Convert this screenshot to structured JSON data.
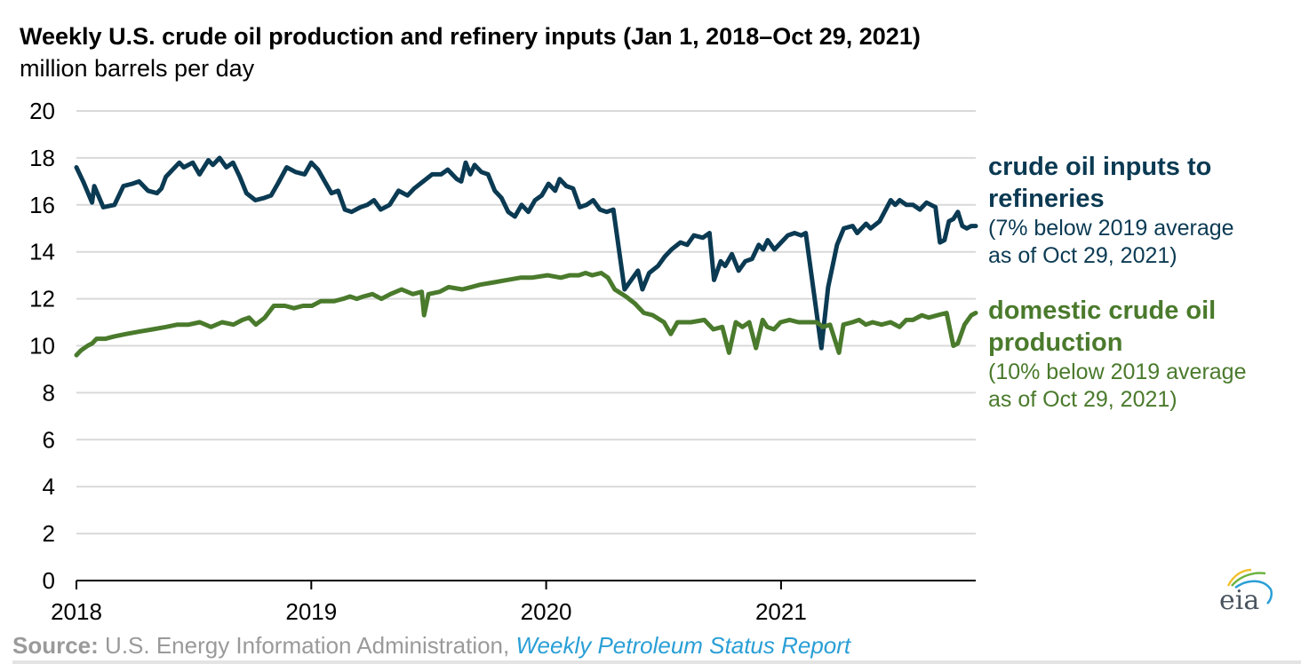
{
  "title": "Weekly U.S. crude oil production and refinery inputs (Jan 1, 2018–Oct 29, 2021)",
  "subtitle": "million barrels per day",
  "labels": {
    "refinery_head_1": "crude oil inputs to",
    "refinery_head_2": "refineries",
    "refinery_note_1": "(7% below 2019 average",
    "refinery_note_2": "as of Oct 29, 2021)",
    "production_head_1": "domestic crude oil",
    "production_head_2": "production",
    "production_note_1": "(10% below 2019 average",
    "production_note_2": "as of Oct 29, 2021)"
  },
  "source": {
    "prefix": "Source:",
    "text": " U.S. Energy Information Administration, ",
    "link": "Weekly Petroleum Status Report"
  },
  "logo": {
    "text": "eia"
  },
  "colors": {
    "refinery": "#0b3a53",
    "production": "#4a7a2c",
    "grid": "#d9d9d9",
    "axis": "#000000"
  },
  "chart_data": {
    "type": "line",
    "title": "Weekly U.S. crude oil production and refinery inputs (Jan 1, 2018–Oct 29, 2021)",
    "ylabel": "million barrels per day",
    "xlabel": "",
    "ylim": [
      0,
      20
    ],
    "yticks": [
      "0",
      "2",
      "4",
      "6",
      "8",
      "10",
      "12",
      "14",
      "16",
      "18",
      "20"
    ],
    "xlim": [
      2018.0,
      2021.83
    ],
    "xticks": [
      {
        "value": 2018,
        "label": "2018"
      },
      {
        "value": 2019,
        "label": "2019"
      },
      {
        "value": 2020,
        "label": "2020"
      },
      {
        "value": 2021,
        "label": "2021"
      }
    ],
    "grid": true,
    "legend": "direct labels right",
    "series": [
      {
        "name": "crude oil inputs to refineries",
        "color": "#0b3a53",
        "points": [
          [
            2018.0,
            17.6
          ],
          [
            2018.03,
            17.0
          ],
          [
            2018.07,
            16.1
          ],
          [
            2018.08,
            16.8
          ],
          [
            2018.12,
            15.9
          ],
          [
            2018.17,
            16.0
          ],
          [
            2018.21,
            16.8
          ],
          [
            2018.25,
            16.9
          ],
          [
            2018.28,
            17.0
          ],
          [
            2018.32,
            16.6
          ],
          [
            2018.36,
            16.5
          ],
          [
            2018.38,
            16.7
          ],
          [
            2018.4,
            17.2
          ],
          [
            2018.46,
            17.8
          ],
          [
            2018.48,
            17.6
          ],
          [
            2018.52,
            17.8
          ],
          [
            2018.55,
            17.3
          ],
          [
            2018.59,
            17.9
          ],
          [
            2018.61,
            17.7
          ],
          [
            2018.64,
            18.0
          ],
          [
            2018.67,
            17.6
          ],
          [
            2018.7,
            17.8
          ],
          [
            2018.73,
            17.2
          ],
          [
            2018.76,
            16.5
          ],
          [
            2018.8,
            16.2
          ],
          [
            2018.84,
            16.3
          ],
          [
            2018.87,
            16.4
          ],
          [
            2018.9,
            16.9
          ],
          [
            2018.94,
            17.6
          ],
          [
            2018.98,
            17.4
          ],
          [
            2019.02,
            17.3
          ],
          [
            2019.05,
            17.8
          ],
          [
            2019.08,
            17.5
          ],
          [
            2019.11,
            17.0
          ],
          [
            2019.14,
            16.5
          ],
          [
            2019.17,
            16.6
          ],
          [
            2019.2,
            15.8
          ],
          [
            2019.23,
            15.7
          ],
          [
            2019.27,
            15.9
          ],
          [
            2019.3,
            16.0
          ],
          [
            2019.33,
            16.2
          ],
          [
            2019.36,
            15.8
          ],
          [
            2019.4,
            16.0
          ],
          [
            2019.44,
            16.6
          ],
          [
            2019.48,
            16.4
          ],
          [
            2019.51,
            16.7
          ],
          [
            2019.55,
            17.0
          ],
          [
            2019.59,
            17.3
          ],
          [
            2019.63,
            17.3
          ],
          [
            2019.66,
            17.5
          ],
          [
            2019.7,
            17.1
          ],
          [
            2019.72,
            17.0
          ],
          [
            2019.74,
            17.8
          ],
          [
            2019.76,
            17.3
          ],
          [
            2019.78,
            17.7
          ],
          [
            2019.81,
            17.4
          ],
          [
            2019.84,
            17.3
          ],
          [
            2019.87,
            16.6
          ],
          [
            2019.9,
            16.3
          ],
          [
            2019.93,
            15.7
          ],
          [
            2019.96,
            15.5
          ],
          [
            2019.99,
            16.0
          ],
          [
            2020.02,
            15.7
          ],
          [
            2020.05,
            16.2
          ],
          [
            2020.08,
            16.4
          ],
          [
            2020.11,
            16.9
          ],
          [
            2020.14,
            16.6
          ],
          [
            2020.16,
            17.1
          ],
          [
            2020.19,
            16.8
          ],
          [
            2020.22,
            16.7
          ],
          [
            2020.25,
            15.9
          ],
          [
            2020.28,
            16.0
          ],
          [
            2020.31,
            16.2
          ],
          [
            2020.34,
            15.8
          ],
          [
            2020.37,
            15.7
          ],
          [
            2020.4,
            15.8
          ],
          [
            2020.45,
            12.4
          ],
          [
            2020.48,
            12.8
          ],
          [
            2020.51,
            13.2
          ],
          [
            2020.53,
            12.4
          ],
          [
            2020.56,
            13.1
          ],
          [
            2020.6,
            13.4
          ],
          [
            2020.63,
            13.8
          ],
          [
            2020.66,
            14.1
          ],
          [
            2020.7,
            14.4
          ],
          [
            2020.73,
            14.3
          ],
          [
            2020.76,
            14.7
          ],
          [
            2020.8,
            14.6
          ],
          [
            2020.83,
            14.8
          ],
          [
            2020.85,
            12.8
          ],
          [
            2020.88,
            13.6
          ],
          [
            2020.9,
            13.4
          ],
          [
            2020.93,
            13.9
          ],
          [
            2020.96,
            13.2
          ],
          [
            2020.99,
            13.6
          ],
          [
            2021.02,
            13.7
          ],
          [
            2021.05,
            14.3
          ],
          [
            2021.07,
            14.1
          ],
          [
            2021.09,
            14.5
          ],
          [
            2021.12,
            14.1
          ],
          [
            2021.15,
            14.4
          ],
          [
            2021.18,
            14.7
          ],
          [
            2021.21,
            14.8
          ],
          [
            2021.24,
            14.7
          ],
          [
            2021.26,
            14.8
          ],
          [
            2021.33,
            9.9
          ],
          [
            2021.36,
            12.5
          ],
          [
            2021.4,
            14.3
          ],
          [
            2021.43,
            15.0
          ],
          [
            2021.47,
            15.1
          ],
          [
            2021.49,
            14.8
          ],
          [
            2021.53,
            15.2
          ],
          [
            2021.55,
            15.0
          ],
          [
            2021.59,
            15.3
          ],
          [
            2021.64,
            16.2
          ],
          [
            2021.66,
            16.0
          ],
          [
            2021.68,
            16.2
          ],
          [
            2021.71,
            16.0
          ],
          [
            2021.74,
            16.0
          ],
          [
            2021.77,
            15.8
          ],
          [
            2021.8,
            16.1
          ],
          [
            2021.82,
            16.0
          ],
          [
            2021.84,
            15.9
          ],
          [
            2021.86,
            14.4
          ],
          [
            2021.88,
            14.5
          ],
          [
            2021.9,
            15.3
          ],
          [
            2021.92,
            15.4
          ],
          [
            2021.94,
            15.7
          ],
          [
            2021.96,
            15.1
          ],
          [
            2021.98,
            15.0
          ],
          [
            2022.0,
            15.1
          ],
          [
            2022.02,
            15.1
          ]
        ]
      },
      {
        "name": "domestic crude oil production",
        "color": "#4a7a2c",
        "points": [
          [
            2018.0,
            9.6
          ],
          [
            2018.02,
            9.8
          ],
          [
            2018.05,
            10.0
          ],
          [
            2018.07,
            10.1
          ],
          [
            2018.09,
            10.3
          ],
          [
            2018.13,
            10.3
          ],
          [
            2018.17,
            10.4
          ],
          [
            2018.22,
            10.5
          ],
          [
            2018.28,
            10.6
          ],
          [
            2018.34,
            10.7
          ],
          [
            2018.4,
            10.8
          ],
          [
            2018.45,
            10.9
          ],
          [
            2018.5,
            10.9
          ],
          [
            2018.55,
            11.0
          ],
          [
            2018.6,
            10.8
          ],
          [
            2018.65,
            11.0
          ],
          [
            2018.7,
            10.9
          ],
          [
            2018.74,
            11.1
          ],
          [
            2018.77,
            11.2
          ],
          [
            2018.8,
            10.9
          ],
          [
            2018.84,
            11.2
          ],
          [
            2018.88,
            11.7
          ],
          [
            2018.93,
            11.7
          ],
          [
            2018.97,
            11.6
          ],
          [
            2019.01,
            11.7
          ],
          [
            2019.05,
            11.7
          ],
          [
            2019.09,
            11.9
          ],
          [
            2019.15,
            11.9
          ],
          [
            2019.19,
            12.0
          ],
          [
            2019.22,
            12.1
          ],
          [
            2019.25,
            12.0
          ],
          [
            2019.28,
            12.1
          ],
          [
            2019.32,
            12.2
          ],
          [
            2019.36,
            12.0
          ],
          [
            2019.4,
            12.2
          ],
          [
            2019.45,
            12.4
          ],
          [
            2019.5,
            12.2
          ],
          [
            2019.54,
            12.3
          ],
          [
            2019.55,
            11.3
          ],
          [
            2019.57,
            12.2
          ],
          [
            2019.62,
            12.3
          ],
          [
            2019.66,
            12.5
          ],
          [
            2019.72,
            12.4
          ],
          [
            2019.76,
            12.5
          ],
          [
            2019.8,
            12.6
          ],
          [
            2019.86,
            12.7
          ],
          [
            2019.92,
            12.8
          ],
          [
            2019.98,
            12.9
          ],
          [
            2020.03,
            12.9
          ],
          [
            2020.1,
            13.0
          ],
          [
            2020.16,
            12.9
          ],
          [
            2020.2,
            13.0
          ],
          [
            2020.24,
            13.0
          ],
          [
            2020.27,
            13.1
          ],
          [
            2020.3,
            13.0
          ],
          [
            2020.34,
            13.1
          ],
          [
            2020.37,
            12.9
          ],
          [
            2020.4,
            12.4
          ],
          [
            2020.45,
            12.1
          ],
          [
            2020.49,
            11.8
          ],
          [
            2020.53,
            11.4
          ],
          [
            2020.57,
            11.3
          ],
          [
            2020.62,
            11.0
          ],
          [
            2020.65,
            10.5
          ],
          [
            2020.68,
            11.0
          ],
          [
            2020.74,
            11.0
          ],
          [
            2020.8,
            11.1
          ],
          [
            2020.84,
            10.7
          ],
          [
            2020.88,
            10.8
          ],
          [
            2020.91,
            9.7
          ],
          [
            2020.94,
            11.0
          ],
          [
            2020.97,
            10.8
          ],
          [
            2021.0,
            11.0
          ],
          [
            2021.03,
            9.9
          ],
          [
            2021.06,
            11.1
          ],
          [
            2021.08,
            10.8
          ],
          [
            2021.11,
            10.7
          ],
          [
            2021.14,
            11.0
          ],
          [
            2021.18,
            11.1
          ],
          [
            2021.22,
            11.0
          ],
          [
            2021.3,
            11.0
          ],
          [
            2021.33,
            10.8
          ],
          [
            2021.36,
            10.9
          ],
          [
            2021.4,
            9.7
          ],
          [
            2021.42,
            10.9
          ],
          [
            2021.46,
            11.0
          ],
          [
            2021.49,
            11.1
          ],
          [
            2021.52,
            10.9
          ],
          [
            2021.55,
            11.0
          ],
          [
            2021.59,
            10.9
          ],
          [
            2021.63,
            11.0
          ],
          [
            2021.67,
            10.8
          ],
          [
            2021.7,
            11.1
          ],
          [
            2021.73,
            11.1
          ],
          [
            2021.77,
            11.3
          ],
          [
            2021.8,
            11.2
          ],
          [
            2021.84,
            11.3
          ],
          [
            2021.88,
            11.4
          ],
          [
            2021.91,
            10.0
          ],
          [
            2021.93,
            10.1
          ],
          [
            2021.96,
            10.9
          ],
          [
            2021.99,
            11.3
          ],
          [
            2022.01,
            11.4
          ]
        ]
      }
    ]
  }
}
